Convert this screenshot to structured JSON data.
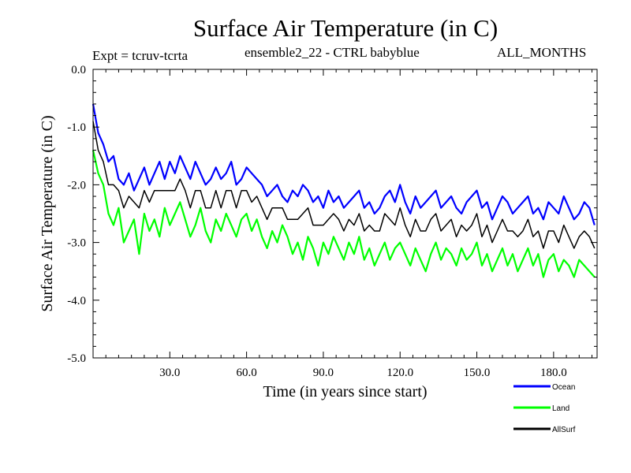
{
  "header": {
    "title": "Surface Air Temperature (in C)",
    "expt": "Expt = tcruv-tcrta",
    "ensemble": "ensemble2_22 - CTRL babyblue",
    "months": "ALL_MONTHS"
  },
  "chart_data": {
    "type": "line",
    "xlabel": "Time (in years since start)",
    "ylabel": "Surface Air Temperature (in C)",
    "xlim": [
      0,
      197
    ],
    "ylim": [
      -5.0,
      0.0
    ],
    "xticks": [
      30,
      60,
      90,
      120,
      150,
      180
    ],
    "xtick_labels": [
      "30.0",
      "60.0",
      "90.0",
      "120.0",
      "150.0",
      "180.0"
    ],
    "yticks": [
      0,
      -1,
      -2,
      -3,
      -4,
      -5
    ],
    "ytick_labels": [
      "0.0",
      "-1.0",
      "-2.0",
      "-3.0",
      "-4.0",
      "-5.0"
    ],
    "x": [
      0,
      2,
      4,
      6,
      8,
      10,
      12,
      14,
      16,
      18,
      20,
      22,
      24,
      26,
      28,
      30,
      32,
      34,
      36,
      38,
      40,
      42,
      44,
      46,
      48,
      50,
      52,
      54,
      56,
      58,
      60,
      62,
      64,
      66,
      68,
      70,
      72,
      74,
      76,
      78,
      80,
      82,
      84,
      86,
      88,
      90,
      92,
      94,
      96,
      98,
      100,
      102,
      104,
      106,
      108,
      110,
      112,
      114,
      116,
      118,
      120,
      122,
      124,
      126,
      128,
      130,
      132,
      134,
      136,
      138,
      140,
      142,
      144,
      146,
      148,
      150,
      152,
      154,
      156,
      158,
      160,
      162,
      164,
      166,
      168,
      170,
      172,
      174,
      176,
      178,
      180,
      182,
      184,
      186,
      188,
      190,
      192,
      194,
      196
    ],
    "series": [
      {
        "name": "Ocean",
        "color": "#0000ff",
        "values": [
          -0.6,
          -1.1,
          -1.3,
          -1.6,
          -1.5,
          -1.9,
          -2.0,
          -1.8,
          -2.1,
          -1.9,
          -1.7,
          -2.0,
          -1.8,
          -1.6,
          -1.9,
          -1.6,
          -1.8,
          -1.5,
          -1.7,
          -1.9,
          -1.6,
          -1.8,
          -2.0,
          -1.9,
          -1.7,
          -1.9,
          -1.8,
          -1.6,
          -2.0,
          -1.9,
          -1.7,
          -1.8,
          -1.9,
          -2.0,
          -2.2,
          -2.1,
          -2.0,
          -2.2,
          -2.3,
          -2.1,
          -2.2,
          -2.0,
          -2.1,
          -2.3,
          -2.2,
          -2.4,
          -2.1,
          -2.3,
          -2.2,
          -2.4,
          -2.3,
          -2.2,
          -2.1,
          -2.4,
          -2.3,
          -2.5,
          -2.4,
          -2.2,
          -2.1,
          -2.3,
          -2.0,
          -2.3,
          -2.5,
          -2.2,
          -2.4,
          -2.3,
          -2.2,
          -2.1,
          -2.4,
          -2.3,
          -2.2,
          -2.4,
          -2.5,
          -2.3,
          -2.2,
          -2.1,
          -2.4,
          -2.3,
          -2.6,
          -2.4,
          -2.2,
          -2.3,
          -2.5,
          -2.4,
          -2.3,
          -2.2,
          -2.5,
          -2.4,
          -2.6,
          -2.3,
          -2.4,
          -2.5,
          -2.2,
          -2.4,
          -2.6,
          -2.5,
          -2.3,
          -2.4,
          -2.7
        ]
      },
      {
        "name": "Land",
        "color": "#00ff00",
        "values": [
          -1.4,
          -1.8,
          -2.0,
          -2.5,
          -2.7,
          -2.4,
          -3.0,
          -2.8,
          -2.6,
          -3.2,
          -2.5,
          -2.8,
          -2.6,
          -2.9,
          -2.4,
          -2.7,
          -2.5,
          -2.3,
          -2.6,
          -2.9,
          -2.7,
          -2.4,
          -2.8,
          -3.0,
          -2.6,
          -2.8,
          -2.5,
          -2.7,
          -2.9,
          -2.6,
          -2.5,
          -2.8,
          -2.6,
          -2.9,
          -3.1,
          -2.8,
          -3.0,
          -2.7,
          -2.9,
          -3.2,
          -3.0,
          -3.3,
          -2.9,
          -3.1,
          -3.4,
          -3.0,
          -3.2,
          -2.9,
          -3.1,
          -3.3,
          -3.0,
          -3.2,
          -2.9,
          -3.3,
          -3.1,
          -3.4,
          -3.2,
          -3.0,
          -3.3,
          -3.1,
          -3.0,
          -3.2,
          -3.4,
          -3.1,
          -3.3,
          -3.5,
          -3.2,
          -3.0,
          -3.3,
          -3.1,
          -3.2,
          -3.4,
          -3.1,
          -3.3,
          -3.2,
          -3.0,
          -3.4,
          -3.2,
          -3.5,
          -3.3,
          -3.1,
          -3.4,
          -3.2,
          -3.5,
          -3.3,
          -3.1,
          -3.4,
          -3.2,
          -3.6,
          -3.3,
          -3.2,
          -3.5,
          -3.3,
          -3.4,
          -3.6,
          -3.3,
          -3.4,
          -3.5,
          -3.6
        ]
      },
      {
        "name": "AllSurf",
        "color": "#000000",
        "values": [
          -0.9,
          -1.4,
          -1.6,
          -2.0,
          -2.0,
          -2.1,
          -2.4,
          -2.2,
          -2.3,
          -2.4,
          -2.1,
          -2.3,
          -2.1,
          -2.1,
          -2.1,
          -2.1,
          -2.1,
          -1.9,
          -2.1,
          -2.4,
          -2.1,
          -2.1,
          -2.4,
          -2.4,
          -2.1,
          -2.4,
          -2.1,
          -2.1,
          -2.4,
          -2.1,
          -2.1,
          -2.3,
          -2.2,
          -2.4,
          -2.6,
          -2.4,
          -2.4,
          -2.4,
          -2.6,
          -2.6,
          -2.6,
          -2.5,
          -2.4,
          -2.7,
          -2.7,
          -2.7,
          -2.6,
          -2.5,
          -2.6,
          -2.8,
          -2.6,
          -2.7,
          -2.5,
          -2.8,
          -2.7,
          -2.8,
          -2.8,
          -2.5,
          -2.6,
          -2.7,
          -2.4,
          -2.7,
          -2.9,
          -2.6,
          -2.8,
          -2.8,
          -2.6,
          -2.5,
          -2.8,
          -2.7,
          -2.6,
          -2.9,
          -2.7,
          -2.8,
          -2.7,
          -2.5,
          -2.9,
          -2.7,
          -3.0,
          -2.8,
          -2.6,
          -2.8,
          -2.8,
          -2.9,
          -2.8,
          -2.6,
          -2.9,
          -2.8,
          -3.1,
          -2.8,
          -2.8,
          -3.0,
          -2.7,
          -2.9,
          -3.1,
          -2.9,
          -2.8,
          -2.9,
          -3.1
        ]
      }
    ],
    "legend": {
      "placement": "bottom-right"
    }
  }
}
